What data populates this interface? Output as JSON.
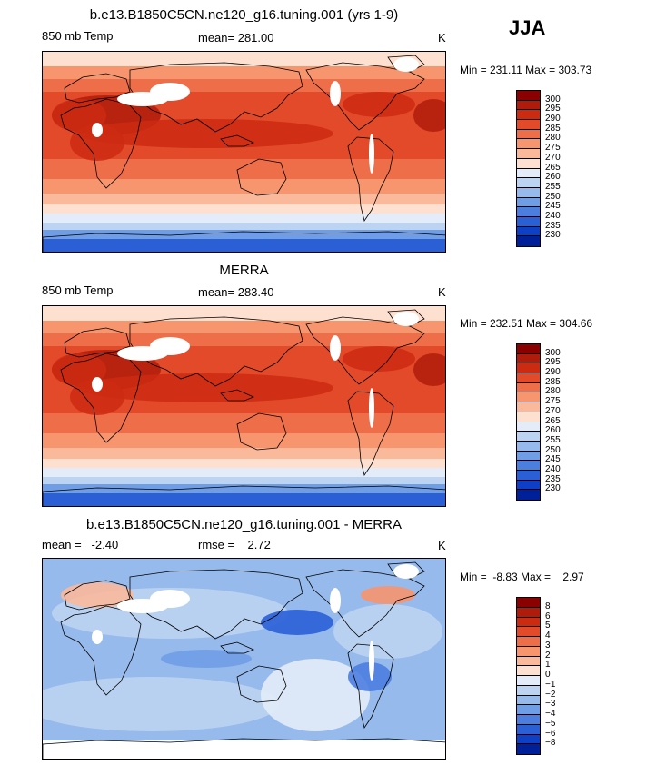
{
  "season": "JJA",
  "panels": [
    {
      "title": "b.e13.B1850C5CN.ne120_g16.tuning.001 (yrs 1-9)",
      "left_text": "850 mb Temp",
      "center_text": "mean= 281.00",
      "unit": "K",
      "minmax": "Min = 231.11 Max = 303.73",
      "colorbar_labels": [
        "300",
        "295",
        "290",
        "285",
        "280",
        "275",
        "270",
        "265",
        "260",
        "255",
        "250",
        "245",
        "240",
        "235",
        "230"
      ],
      "colors": [
        "#8b0000",
        "#b01c0c",
        "#cd2a12",
        "#e24a2a",
        "#ef6e4a",
        "#f7956f",
        "#fbb99c",
        "#fde0d0",
        "#e3ecf8",
        "#bcd4f2",
        "#97baec",
        "#6f9de6",
        "#4c7ee0",
        "#2a5fd6",
        "#0e3fc7",
        "#00209a"
      ]
    },
    {
      "title": "MERRA",
      "left_text": "850 mb Temp",
      "center_text": "mean= 283.40",
      "unit": "K",
      "minmax": "Min = 232.51 Max = 304.66",
      "colorbar_labels": [
        "300",
        "295",
        "290",
        "285",
        "280",
        "275",
        "270",
        "265",
        "260",
        "255",
        "250",
        "245",
        "240",
        "235",
        "230"
      ],
      "colors": [
        "#8b0000",
        "#b01c0c",
        "#cd2a12",
        "#e24a2a",
        "#ef6e4a",
        "#f7956f",
        "#fbb99c",
        "#fde0d0",
        "#e3ecf8",
        "#bcd4f2",
        "#97baec",
        "#6f9de6",
        "#4c7ee0",
        "#2a5fd6",
        "#0e3fc7",
        "#00209a"
      ]
    },
    {
      "title": "b.e13.B1850C5CN.ne120_g16.tuning.001 - MERRA",
      "left_text": "mean =   -2.40",
      "center_text": "rmse =    2.72",
      "unit": "K",
      "minmax": "Min =  -8.83 Max =    2.97",
      "colorbar_labels": [
        "8",
        "6",
        "5",
        "4",
        "3",
        "2",
        "1",
        "0",
        "−1",
        "−2",
        "−3",
        "−4",
        "−5",
        "−6",
        "−8"
      ],
      "colors": [
        "#8b0000",
        "#b01c0c",
        "#cd2a12",
        "#e24a2a",
        "#ef6e4a",
        "#f7956f",
        "#fbb99c",
        "#fde0d0",
        "#e3ecf8",
        "#bcd4f2",
        "#97baec",
        "#6f9de6",
        "#4c7ee0",
        "#2a5fd6",
        "#0e3fc7",
        "#00209a"
      ]
    }
  ],
  "chart_data": [
    {
      "type": "heatmap",
      "title": "b.e13.B1850C5CN.ne120_g16.tuning.001 (yrs 1-9)",
      "variable": "850 mb Temp",
      "unit": "K",
      "mean": 281.0,
      "min": 231.11,
      "max": 303.73,
      "contour_levels": [
        230,
        235,
        240,
        245,
        250,
        255,
        260,
        265,
        270,
        275,
        280,
        285,
        290,
        295,
        300
      ]
    },
    {
      "type": "heatmap",
      "title": "MERRA",
      "variable": "850 mb Temp",
      "unit": "K",
      "mean": 283.4,
      "min": 232.51,
      "max": 304.66,
      "contour_levels": [
        230,
        235,
        240,
        245,
        250,
        255,
        260,
        265,
        270,
        275,
        280,
        285,
        290,
        295,
        300
      ]
    },
    {
      "type": "heatmap",
      "title": "b.e13.B1850C5CN.ne120_g16.tuning.001 - MERRA",
      "unit": "K",
      "mean": -2.4,
      "rmse": 2.72,
      "min": -8.83,
      "max": 2.97,
      "contour_levels": [
        -8,
        -6,
        -5,
        -4,
        -3,
        -2,
        -1,
        0,
        1,
        2,
        3,
        4,
        5,
        6,
        8
      ]
    }
  ]
}
